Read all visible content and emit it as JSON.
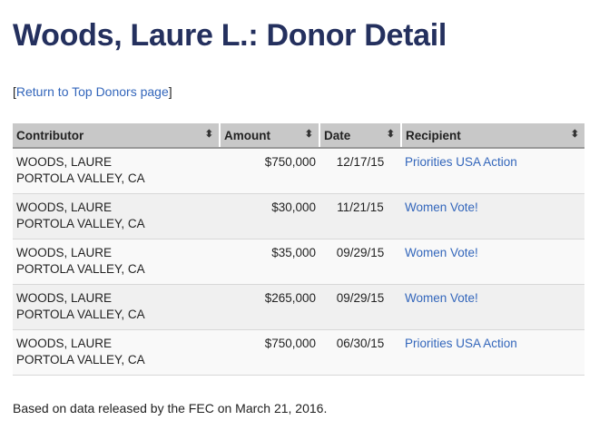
{
  "title": "Woods, Laure L.: Donor Detail",
  "return_link": "Return to Top Donors page",
  "columns": [
    "Contributor",
    "Amount",
    "Date",
    "Recipient"
  ],
  "rows": [
    {
      "name": "WOODS, LAURE",
      "location": "PORTOLA VALLEY, CA",
      "amount": "$750,000",
      "date": "12/17/15",
      "recipient": "Priorities USA Action"
    },
    {
      "name": "WOODS, LAURE",
      "location": "PORTOLA VALLEY, CA",
      "amount": "$30,000",
      "date": "11/21/15",
      "recipient": "Women Vote!"
    },
    {
      "name": "WOODS, LAURE",
      "location": "PORTOLA VALLEY, CA",
      "amount": "$35,000",
      "date": "09/29/15",
      "recipient": "Women Vote!"
    },
    {
      "name": "WOODS, LAURE",
      "location": "PORTOLA VALLEY, CA",
      "amount": "$265,000",
      "date": "09/29/15",
      "recipient": "Women Vote!"
    },
    {
      "name": "WOODS, LAURE",
      "location": "PORTOLA VALLEY, CA",
      "amount": "$750,000",
      "date": "06/30/15",
      "recipient": "Priorities USA Action"
    }
  ],
  "footer": "Based on data released by the FEC on March 21, 2016."
}
